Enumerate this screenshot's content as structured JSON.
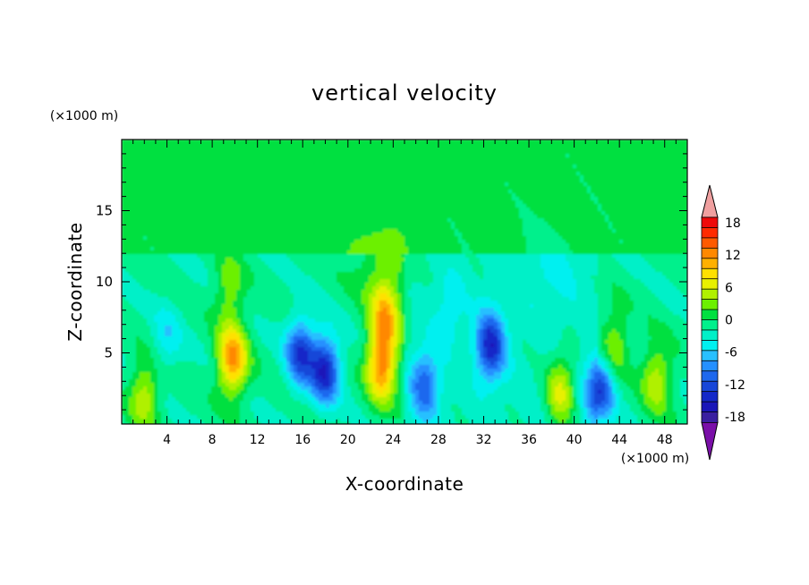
{
  "chart_data": {
    "type": "heatmap",
    "title": "vertical velocity",
    "xlabel": "X-coordinate",
    "ylabel": "Z-coordinate",
    "x_unit": "(×1000 m)",
    "y_unit": "(×1000 m)",
    "xlim": [
      0,
      50
    ],
    "ylim": [
      0,
      20
    ],
    "x_ticks": [
      4,
      8,
      12,
      16,
      20,
      24,
      28,
      32,
      36,
      40,
      44,
      48
    ],
    "y_ticks": [
      5,
      10,
      15
    ],
    "colorbar": {
      "tick_labels": [
        "18",
        "12",
        "6",
        "0",
        "-6",
        "-12",
        "-18"
      ],
      "tick_values": [
        18,
        12,
        6,
        0,
        -6,
        -12,
        -18
      ],
      "levels": [
        -21,
        -19,
        -17,
        -15,
        -13,
        -11,
        -9,
        -7,
        -5,
        -3,
        -1,
        1,
        3,
        5,
        7,
        9,
        11,
        13,
        15,
        17,
        19,
        21
      ],
      "colors": [
        "#7a0fa8",
        "#3a1fa0",
        "#1a16b8",
        "#1428c8",
        "#1846d8",
        "#1e68ee",
        "#2590ff",
        "#28c0ff",
        "#00f0f0",
        "#00f0c8",
        "#00f08c",
        "#00e040",
        "#6cf000",
        "#b0f000",
        "#e8f000",
        "#ffe000",
        "#ffb000",
        "#ff8800",
        "#ff5a00",
        "#ff2a00",
        "#ee0a0a",
        "#f0a0a0"
      ]
    },
    "features": [
      {
        "x": 2.0,
        "z": 2.0,
        "value": 7
      },
      {
        "x": 9.8,
        "z": 4.5,
        "value": 14
      },
      {
        "x": 9.5,
        "z": 9.5,
        "value": 5
      },
      {
        "x": 4.0,
        "z": 6.0,
        "value": -4
      },
      {
        "x": 15.8,
        "z": 5.0,
        "value": -12
      },
      {
        "x": 18.0,
        "z": 3.8,
        "value": -14
      },
      {
        "x": 23.0,
        "z": 4.0,
        "value": 14
      },
      {
        "x": 23.3,
        "z": 7.5,
        "value": 11
      },
      {
        "x": 23.0,
        "z": 11.0,
        "value": 4
      },
      {
        "x": 26.8,
        "z": 2.7,
        "value": -9
      },
      {
        "x": 32.6,
        "z": 5.5,
        "value": -13
      },
      {
        "x": 38.8,
        "z": 2.3,
        "value": 9
      },
      {
        "x": 42.3,
        "z": 2.5,
        "value": -12
      },
      {
        "x": 47.3,
        "z": 3.2,
        "value": 7
      },
      {
        "x": 43.5,
        "z": 5.5,
        "value": 6
      },
      {
        "x": 29.0,
        "z": 8.0,
        "value": -3
      },
      {
        "x": 38.0,
        "z": 10.5,
        "value": -2
      }
    ]
  }
}
